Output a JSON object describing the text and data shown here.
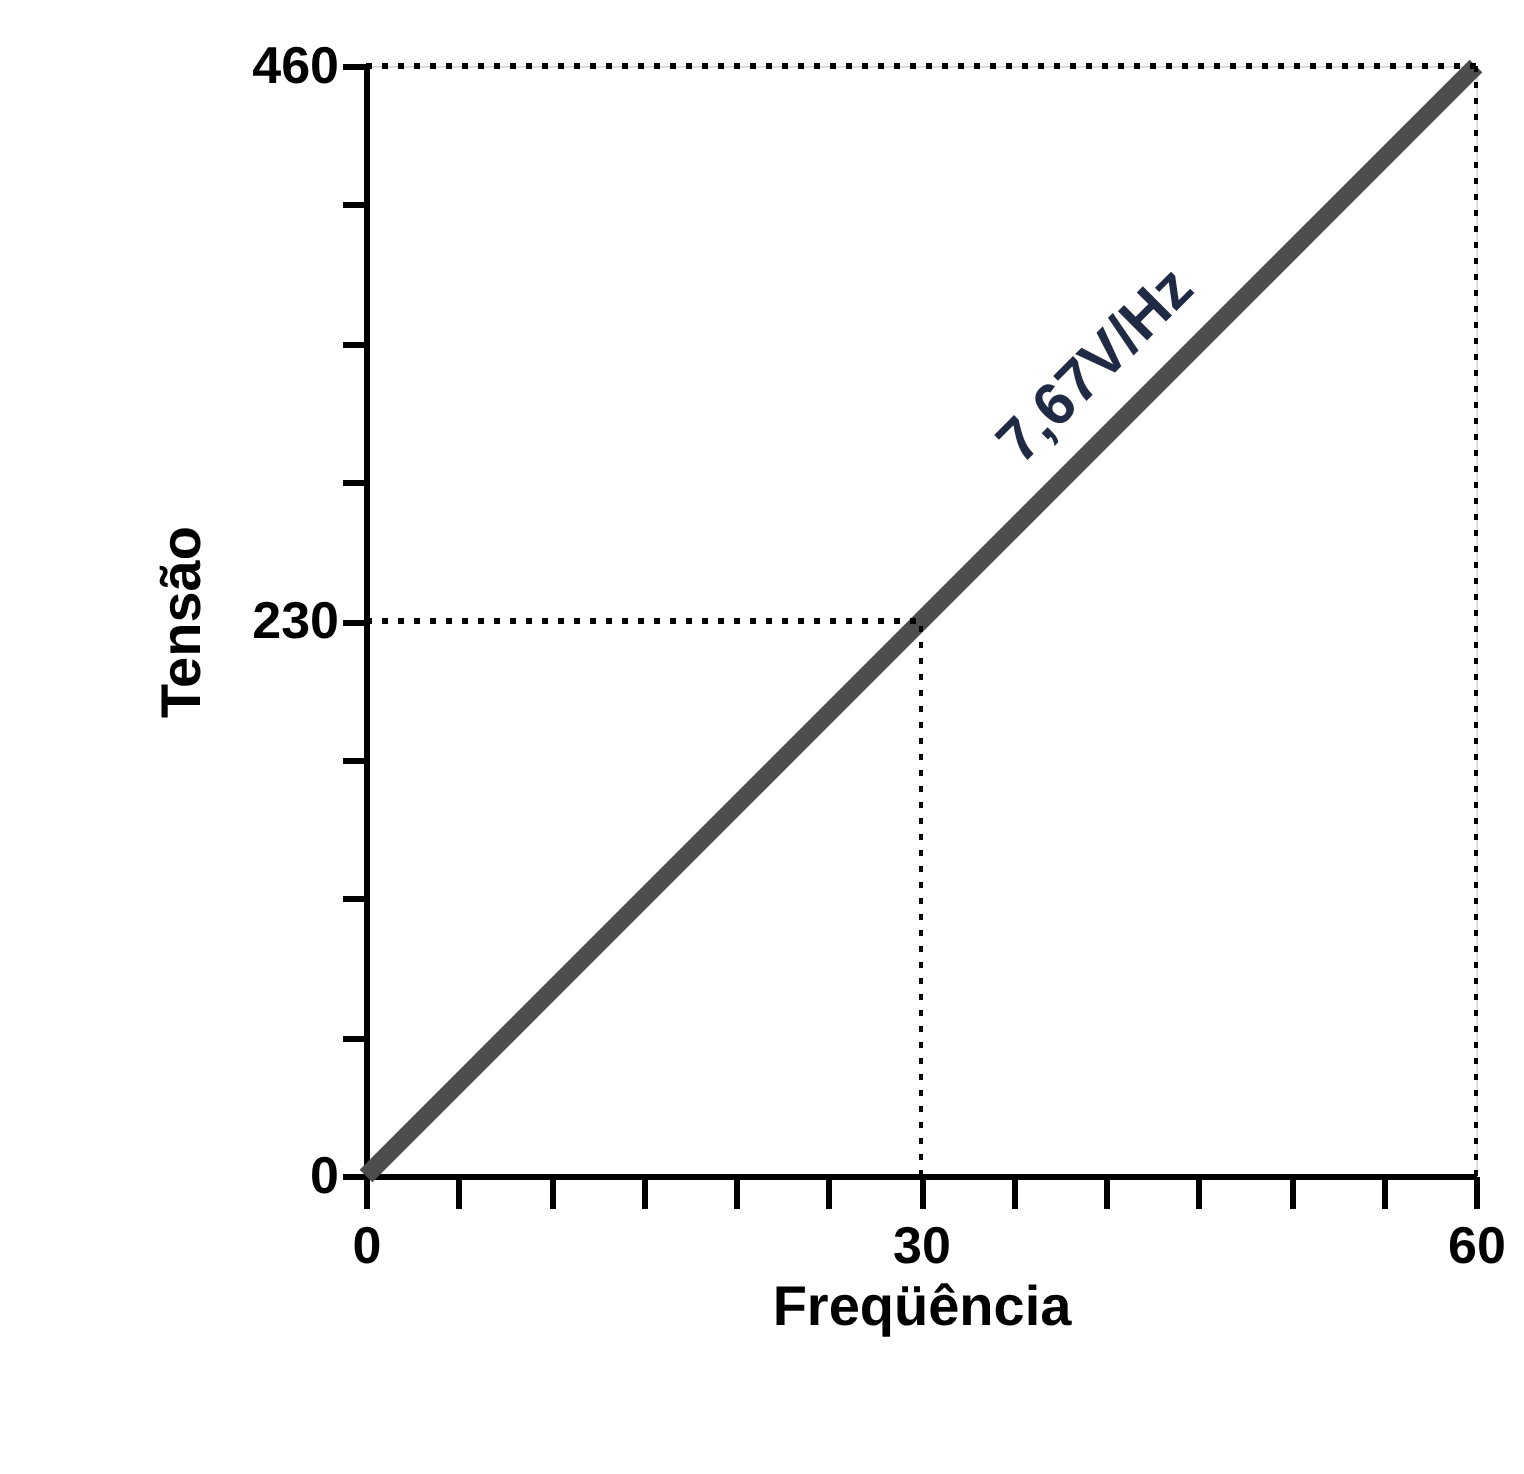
{
  "chart_data": {
    "type": "line",
    "xlabel": "Freqüência",
    "ylabel": "Tensão",
    "x": [
      0,
      60
    ],
    "series": [
      {
        "color": "#4d4d4d",
        "values": [
          0,
          460
        ]
      }
    ],
    "xlim": [
      0,
      60
    ],
    "ylim": [
      0,
      460
    ],
    "xticks": [
      0,
      {
        "value": 5,
        "label": null
      },
      {
        "value": 10,
        "label": null
      },
      {
        "value": 15,
        "label": null
      },
      {
        "value": 20,
        "label": null
      },
      {
        "value": 25,
        "label": null
      },
      30,
      {
        "value": 35,
        "label": null
      },
      {
        "value": 40,
        "label": null
      },
      {
        "value": 45,
        "label": null
      },
      {
        "value": 50,
        "label": null
      },
      {
        "value": 55,
        "label": null
      },
      60
    ],
    "yticks": [
      0,
      {
        "value": 57.5,
        "label": null
      },
      {
        "value": 115,
        "label": null
      },
      {
        "value": 172.5,
        "label": null
      },
      230,
      {
        "value": 287.5,
        "label": null
      },
      {
        "value": 345,
        "label": null
      },
      {
        "value": 402.5,
        "label": null
      },
      460
    ],
    "grid": false,
    "line_style": "solid",
    "marker": "none",
    "ref_lines": [
      {
        "axis": "y",
        "value": 460,
        "line_style": "dotted",
        "color": "#000000"
      },
      {
        "axis": "x",
        "value": 60,
        "line_style": "dotted",
        "color": "#000000"
      },
      {
        "axis": "y",
        "value": 230,
        "line_style": "dotted",
        "color": "#000000"
      },
      {
        "axis": "x",
        "value": 30,
        "line_style": "dotted",
        "color": "#000000"
      }
    ],
    "annotations": [
      "7,67V/Hz"
    ]
  }
}
